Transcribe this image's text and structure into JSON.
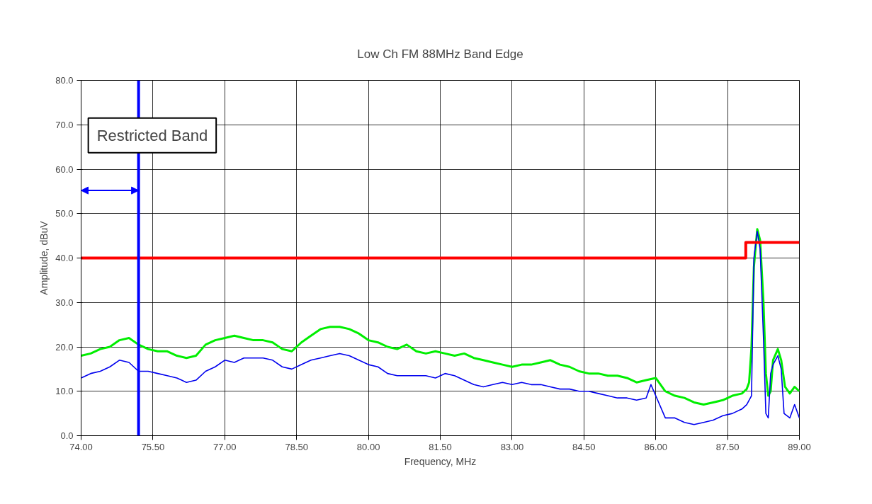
{
  "chart_data": {
    "type": "line",
    "title": "Low Ch FM 88MHz Band Edge",
    "xlabel": "Frequency, MHz",
    "ylabel": "Amplitude, dBuV",
    "annotations": [
      "Restricted Band"
    ],
    "xlim": [
      74,
      89
    ],
    "ylim": [
      0,
      80
    ],
    "xticks": [
      {
        "value": 74,
        "label": "74.00"
      },
      {
        "value": 75.5,
        "label": "75.50"
      },
      {
        "value": 77,
        "label": "77.00"
      },
      {
        "value": 78.5,
        "label": "78.50"
      },
      {
        "value": 80,
        "label": "80.00"
      },
      {
        "value": 81.5,
        "label": "81.50"
      },
      {
        "value": 83,
        "label": "83.00"
      },
      {
        "value": 84.5,
        "label": "84.50"
      },
      {
        "value": 86,
        "label": "86.00"
      },
      {
        "value": 87.5,
        "label": "87.50"
      },
      {
        "value": 89,
        "label": "89.00"
      }
    ],
    "yticks": [
      {
        "value": 0,
        "label": "0.0"
      },
      {
        "value": 10,
        "label": "10.0"
      },
      {
        "value": 20,
        "label": "20.0"
      },
      {
        "value": 30,
        "label": "30.0"
      },
      {
        "value": 40,
        "label": "40.0"
      },
      {
        "value": 50,
        "label": "50.0"
      },
      {
        "value": 60,
        "label": "60.0"
      },
      {
        "value": 70,
        "label": "70.0"
      },
      {
        "value": 80,
        "label": "80.0"
      }
    ],
    "grid": true,
    "ref_lines": [
      {
        "axis": "x",
        "value": 75.2,
        "color": "#0000ff"
      }
    ],
    "series": [
      {
        "color": "#00ee00",
        "x": [
          74.0,
          74.2,
          74.4,
          74.6,
          74.8,
          75.0,
          75.2,
          75.4,
          75.6,
          75.8,
          76.0,
          76.2,
          76.4,
          76.6,
          76.8,
          77.0,
          77.2,
          77.4,
          77.6,
          77.8,
          78.0,
          78.2,
          78.4,
          78.6,
          78.8,
          79.0,
          79.2,
          79.4,
          79.6,
          79.8,
          80.0,
          80.2,
          80.4,
          80.6,
          80.8,
          81.0,
          81.2,
          81.4,
          81.6,
          81.8,
          82.0,
          82.2,
          82.4,
          82.6,
          82.8,
          83.0,
          83.2,
          83.4,
          83.6,
          83.8,
          84.0,
          84.2,
          84.4,
          84.6,
          84.8,
          85.0,
          85.2,
          85.4,
          85.6,
          85.8,
          86.0,
          86.2,
          86.4,
          86.6,
          86.8,
          87.0,
          87.2,
          87.4,
          87.6,
          87.8,
          87.9,
          87.95,
          88.0,
          88.05,
          88.12,
          88.18,
          88.25,
          88.3,
          88.35,
          88.4,
          88.45,
          88.55,
          88.62,
          88.7,
          88.8,
          88.9,
          89.0
        ],
        "values": [
          18,
          18.5,
          19.5,
          20,
          21.5,
          22,
          20.5,
          19.5,
          19,
          19,
          18,
          17.5,
          18,
          20.5,
          21.5,
          22,
          22.5,
          22,
          21.5,
          21.5,
          21,
          19.5,
          19,
          21,
          22.5,
          24,
          24.5,
          24.5,
          24,
          23,
          21.5,
          21,
          20,
          19.5,
          20.5,
          19,
          18.5,
          19,
          18.5,
          18,
          18.5,
          17.5,
          17,
          16.5,
          16,
          15.5,
          16,
          16,
          16.5,
          17,
          16,
          15.5,
          14.5,
          14,
          14,
          13.5,
          13.5,
          13,
          12,
          12.5,
          13,
          10,
          9,
          8.5,
          7.5,
          7,
          7.5,
          8,
          9,
          9.5,
          10.5,
          12,
          20,
          38,
          46.5,
          44,
          30,
          14,
          9,
          10,
          17,
          19.5,
          17,
          11,
          9.5,
          11,
          10
        ]
      },
      {
        "color": "#0000ee",
        "x": [
          74.0,
          74.2,
          74.4,
          74.6,
          74.8,
          75.0,
          75.2,
          75.4,
          75.6,
          75.8,
          76.0,
          76.2,
          76.4,
          76.6,
          76.8,
          77.0,
          77.2,
          77.4,
          77.6,
          77.8,
          78.0,
          78.2,
          78.4,
          78.6,
          78.8,
          79.0,
          79.2,
          79.4,
          79.6,
          79.8,
          80.0,
          80.2,
          80.4,
          80.6,
          80.8,
          81.0,
          81.2,
          81.4,
          81.6,
          81.8,
          82.0,
          82.2,
          82.4,
          82.6,
          82.8,
          83.0,
          83.2,
          83.4,
          83.6,
          83.8,
          84.0,
          84.2,
          84.4,
          84.6,
          84.8,
          85.0,
          85.2,
          85.4,
          85.6,
          85.8,
          85.9,
          86.0,
          86.2,
          86.4,
          86.6,
          86.8,
          87.0,
          87.2,
          87.4,
          87.6,
          87.8,
          87.9,
          88.0,
          88.05,
          88.12,
          88.18,
          88.25,
          88.3,
          88.35,
          88.4,
          88.45,
          88.55,
          88.62,
          88.68,
          88.8,
          88.9,
          89.0
        ],
        "values": [
          13,
          14,
          14.5,
          15.5,
          17,
          16.5,
          14.5,
          14.5,
          14,
          13.5,
          13,
          12,
          12.5,
          14.5,
          15.5,
          17,
          16.5,
          17.5,
          17.5,
          17.5,
          17,
          15.5,
          15,
          16,
          17,
          17.5,
          18,
          18.5,
          18,
          17,
          16,
          15.5,
          14,
          13.5,
          13.5,
          13.5,
          13.5,
          13,
          14,
          13.5,
          12.5,
          11.5,
          11,
          11.5,
          12,
          11.5,
          12,
          11.5,
          11.5,
          11,
          10.5,
          10.5,
          10,
          10,
          9.5,
          9,
          8.5,
          8.5,
          8,
          8.5,
          11.5,
          9,
          4,
          4,
          3,
          2.5,
          3,
          3.5,
          4.5,
          5,
          6,
          7,
          9,
          40,
          46,
          42,
          22,
          5,
          4,
          14,
          16,
          18,
          15,
          5,
          4,
          7,
          4
        ]
      },
      {
        "type": "step",
        "color": "#ff0000",
        "x": [
          74,
          87.88,
          89
        ],
        "values": [
          40,
          43.5,
          43.5
        ]
      }
    ]
  }
}
